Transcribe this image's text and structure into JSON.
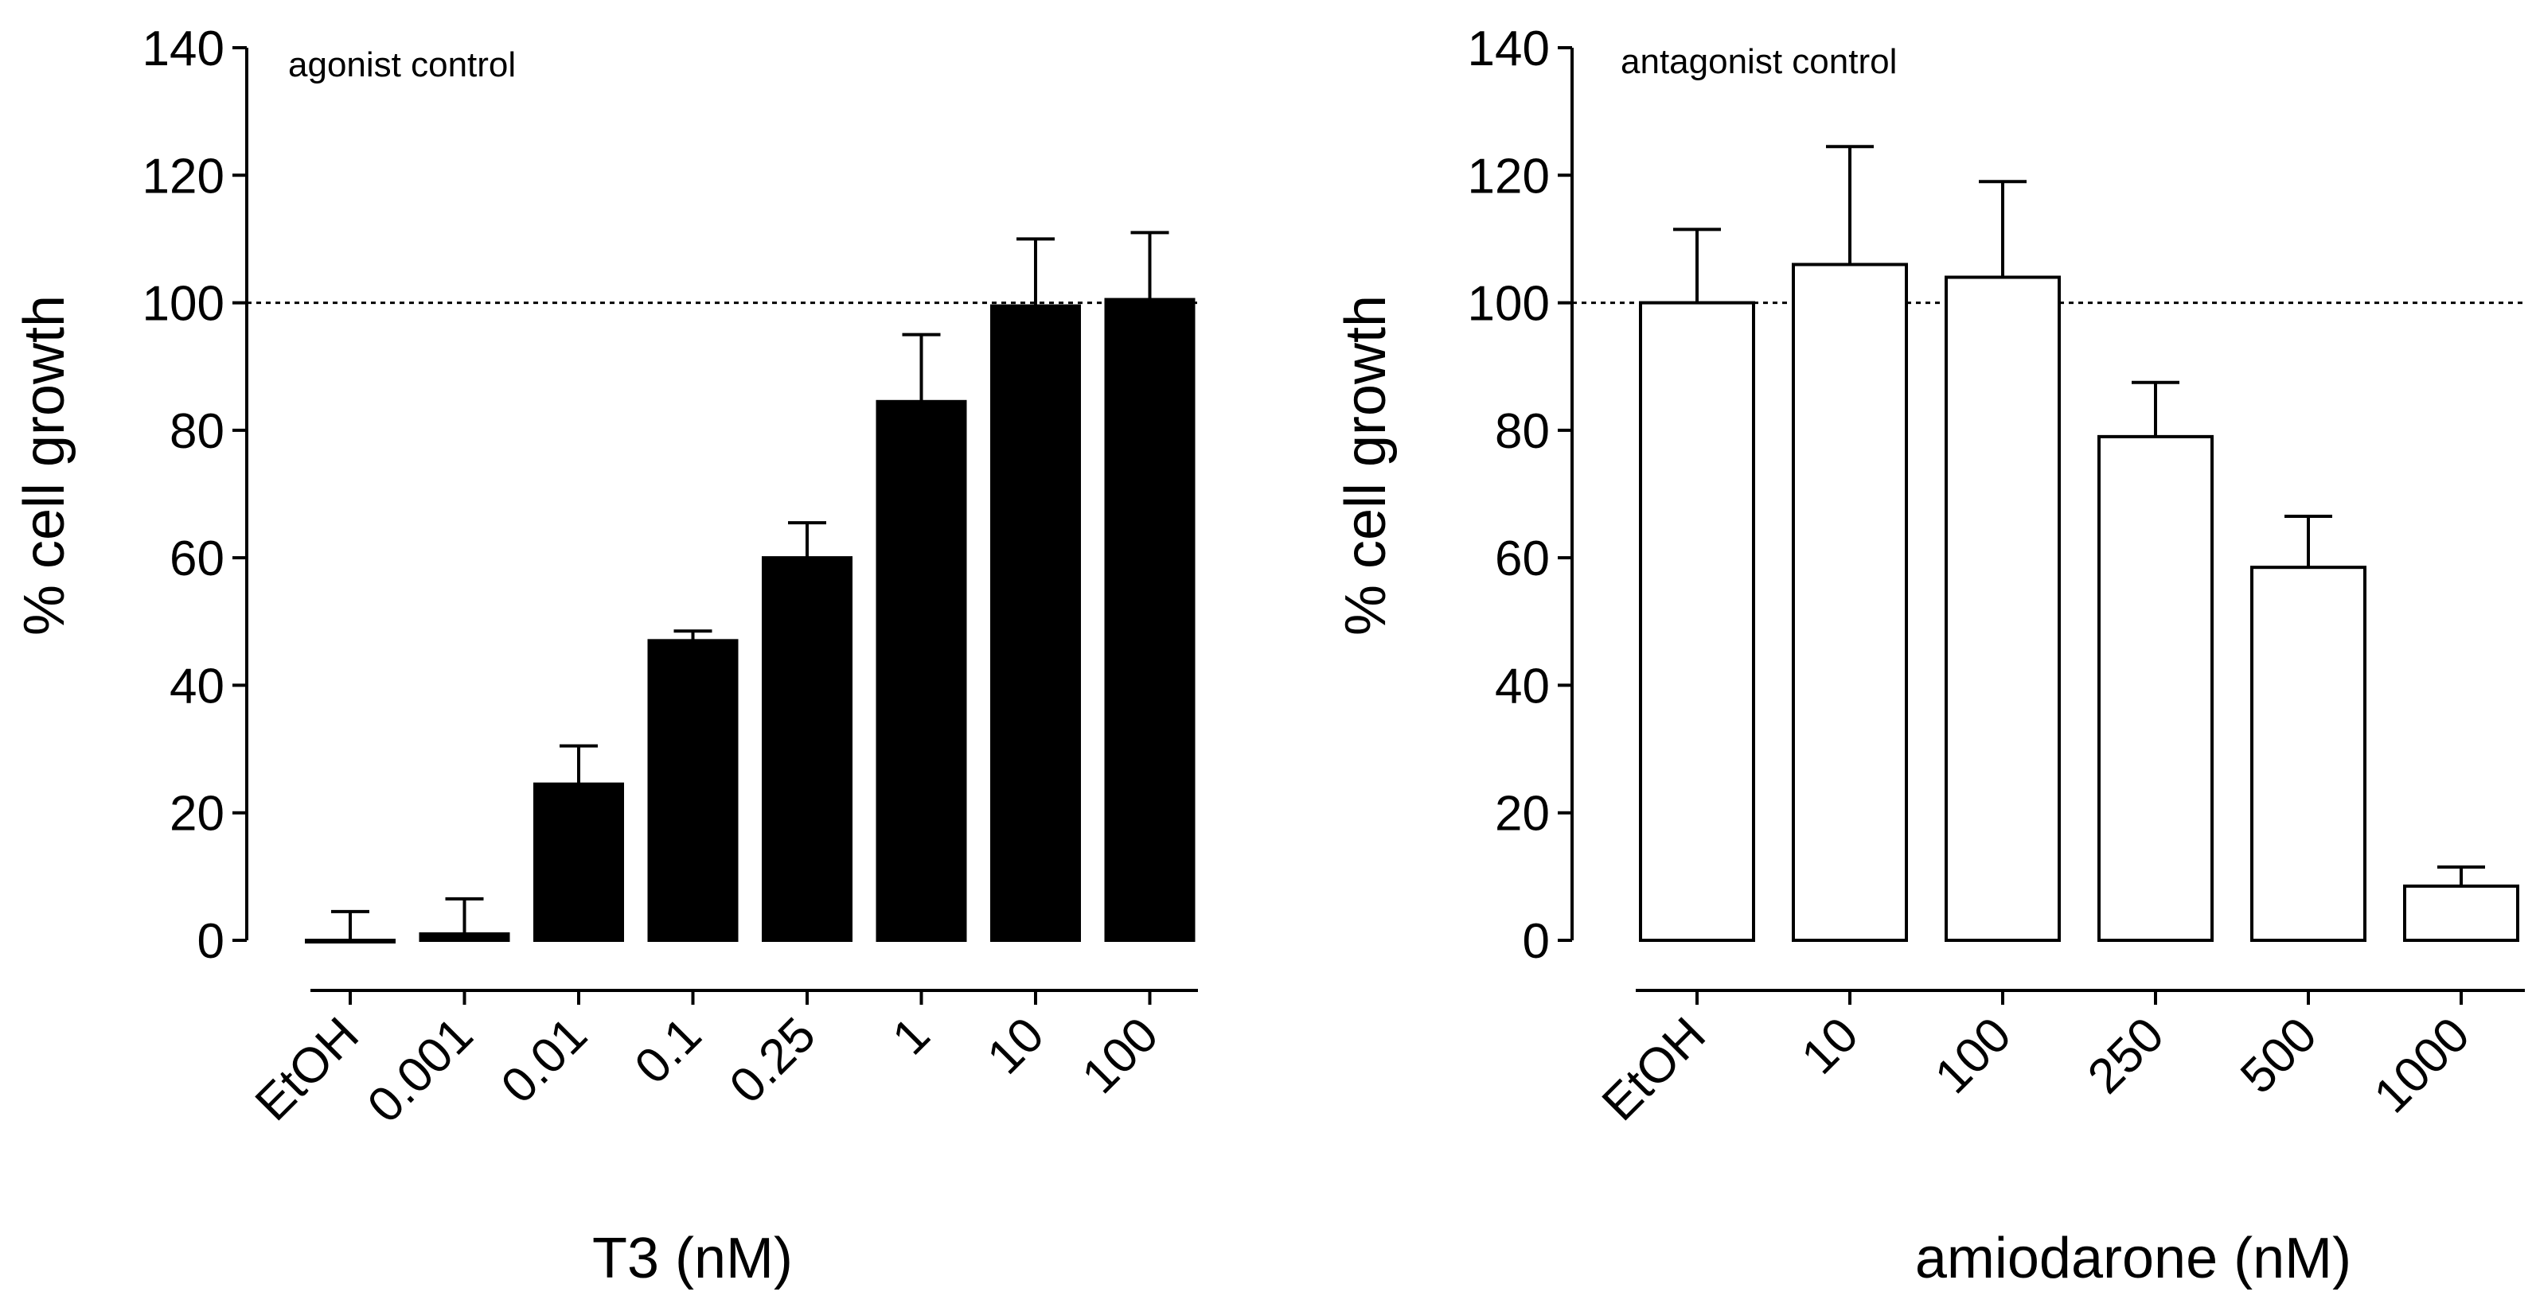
{
  "chart_data": [
    {
      "type": "bar",
      "annotation": "agonist control",
      "xlabel": "T3 (nM)",
      "ylabel": "% cell growth",
      "ylim": [
        0,
        140
      ],
      "yticks": [
        "0",
        "20",
        "40",
        "60",
        "80",
        "100",
        "120",
        "140"
      ],
      "reference_line": 100,
      "bar_fill": "#000000",
      "categories": [
        "EtOH",
        "0.001",
        "0.01",
        "0.1",
        "0.25",
        "1",
        "10",
        "100"
      ],
      "values": [
        0,
        1,
        24.5,
        47,
        60,
        84.5,
        99.5,
        100.5
      ],
      "errors": [
        4.5,
        5.5,
        6,
        1.5,
        5.5,
        10.5,
        10.5,
        10.5
      ]
    },
    {
      "type": "bar",
      "annotation": "antagonist control",
      "xlabel": "amiodarone (nM)",
      "ylabel": "% cell growth",
      "ylim": [
        0,
        140
      ],
      "yticks": [
        "0",
        "20",
        "40",
        "60",
        "80",
        "100",
        "120",
        "140"
      ],
      "reference_line": 100,
      "bar_fill": "#ffffff",
      "categories": [
        "EtOH",
        "10",
        "100",
        "250",
        "500",
        "1000"
      ],
      "values": [
        100,
        106,
        104,
        79,
        58.5,
        8.5
      ],
      "errors": [
        11.5,
        18.5,
        15,
        8.5,
        8,
        3
      ]
    }
  ]
}
